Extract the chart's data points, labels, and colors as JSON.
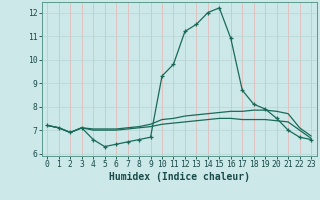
{
  "xlabel": "Humidex (Indice chaleur)",
  "background_color": "#cce8e8",
  "grid_color_v": "#e8b4b4",
  "grid_color_h": "#b8d4d4",
  "line_color": "#1a6a5a",
  "x": [
    0,
    1,
    2,
    3,
    4,
    5,
    6,
    7,
    8,
    9,
    10,
    11,
    12,
    13,
    14,
    15,
    16,
    17,
    18,
    19,
    20,
    21,
    22,
    23
  ],
  "y_max": [
    7.2,
    7.1,
    6.9,
    7.1,
    6.6,
    6.3,
    6.4,
    6.5,
    6.6,
    6.7,
    9.3,
    9.8,
    11.2,
    11.5,
    12.0,
    12.2,
    10.9,
    8.7,
    8.1,
    7.9,
    7.5,
    7.0,
    6.7,
    6.6
  ],
  "y_mean": [
    7.2,
    7.1,
    6.9,
    7.1,
    7.05,
    7.05,
    7.05,
    7.1,
    7.15,
    7.25,
    7.45,
    7.5,
    7.6,
    7.65,
    7.7,
    7.75,
    7.8,
    7.8,
    7.85,
    7.85,
    7.8,
    7.7,
    7.1,
    6.75
  ],
  "y_min": [
    7.2,
    7.1,
    6.9,
    7.1,
    7.0,
    7.0,
    7.0,
    7.05,
    7.1,
    7.15,
    7.25,
    7.3,
    7.35,
    7.4,
    7.45,
    7.5,
    7.5,
    7.45,
    7.45,
    7.45,
    7.4,
    7.35,
    7.0,
    6.65
  ],
  "ylim": [
    5.9,
    12.45
  ],
  "xlim": [
    -0.5,
    23.5
  ],
  "yticks": [
    6,
    7,
    8,
    9,
    10,
    11,
    12
  ],
  "xticks": [
    0,
    1,
    2,
    3,
    4,
    5,
    6,
    7,
    8,
    9,
    10,
    11,
    12,
    13,
    14,
    15,
    16,
    17,
    18,
    19,
    20,
    21,
    22,
    23
  ],
  "tick_fontsize": 5.8,
  "xlabel_fontsize": 7.0,
  "spine_color": "#5a9a8a"
}
